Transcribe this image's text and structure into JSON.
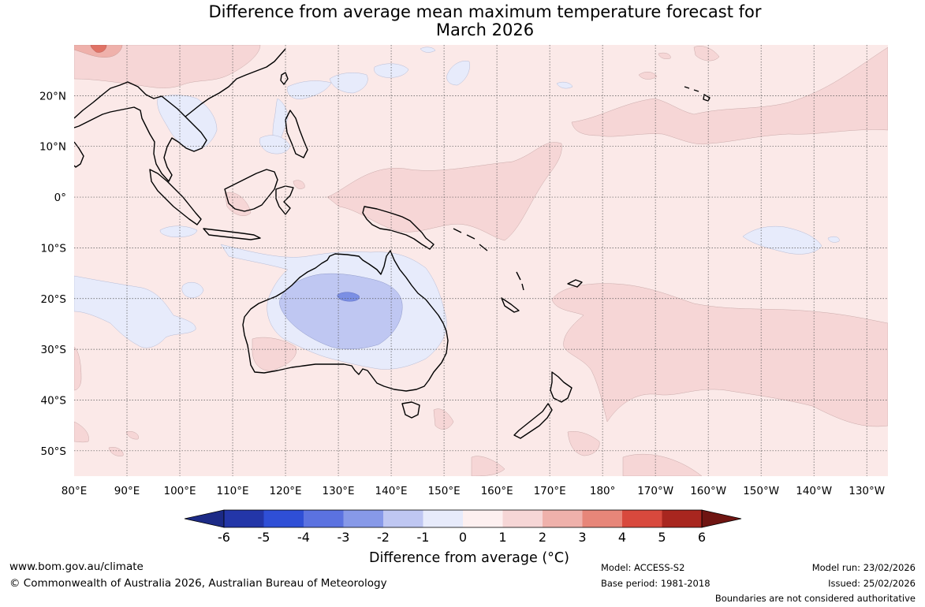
{
  "title": {
    "line1": "Difference from average mean maximum temperature forecast for",
    "line2": "March 2026"
  },
  "map": {
    "lon_labels": [
      "80°E",
      "90°E",
      "100°E",
      "110°E",
      "120°E",
      "130°E",
      "140°E",
      "150°E",
      "160°E",
      "170°E",
      "180°",
      "170°W",
      "160°W",
      "150°W",
      "140°W",
      "130°W"
    ],
    "lat_labels": [
      "20°N",
      "10°N",
      "0°",
      "10°S",
      "20°S",
      "30°S",
      "40°S",
      "50°S"
    ],
    "lon_range_deg_east": [
      80,
      234
    ],
    "lat_range": [
      -55,
      30
    ]
  },
  "colorbar": {
    "ticks": [
      "-6",
      "-5",
      "-4",
      "-3",
      "-2",
      "-1",
      "0",
      "1",
      "2",
      "3",
      "4",
      "5",
      "6"
    ],
    "colors": [
      "#1c2a86",
      "#2336a8",
      "#2f4fd6",
      "#5b72e0",
      "#8799e8",
      "#bfc7f2",
      "#e7ebfb",
      "#fdf0f0",
      "#f6d6d6",
      "#efb1ab",
      "#e78679",
      "#d8493d",
      "#a8261f",
      "#6f1512"
    ],
    "label": "Difference from average (°C)"
  },
  "field_colors": {
    "neutral_warm": "#fbe9e8",
    "warm_1_2": "#f6d6d6",
    "warm_2_3": "#efb1ab",
    "warm_3_4": "#e78679",
    "cool_0_1": "#e7ebfb",
    "cool_1_2": "#bfc7f2",
    "cool_2_3": "#7b8fe4"
  },
  "footer": {
    "website": "www.bom.gov.au/climate",
    "copyright": "© Commonwealth of Australia 2026, Australian Bureau of Meteorology",
    "model": "Model: ACCESS-S2",
    "base_period": "Base period: 1981-2018",
    "model_run": "Model run: 23/02/2026",
    "issued": "Issued: 25/02/2026",
    "disclaimer": "Boundaries are not considered authoritative"
  }
}
